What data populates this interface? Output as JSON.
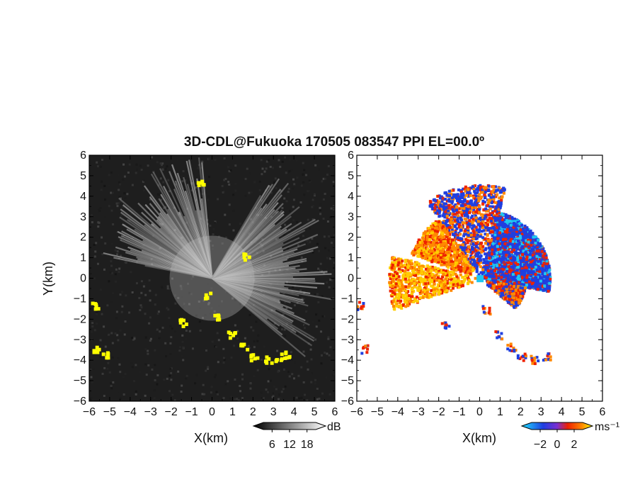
{
  "figure_title": "3D-CDL@Fukuoka 170505 083547 PPI EL=00.0º",
  "colors": {
    "yellow": "#ffff00",
    "gray_dark": "#1e1e1e",
    "blue": "#1f3fe0",
    "cyan": "#20c8f0",
    "orange": "#ff8800",
    "red": "#ee2200",
    "yellow_orange": "#ffcc00"
  },
  "chart_data": [
    {
      "type": "heatmap",
      "panel": "left",
      "quantity_unit": "dB",
      "xlabel": "X(km)",
      "ylabel": "Y(km)",
      "xlim": [
        -6,
        6
      ],
      "ylim": [
        -6,
        6
      ],
      "x_ticks": [
        "−6",
        "−5",
        "−4",
        "−3",
        "−2",
        "−1",
        "0",
        "1",
        "2",
        "3",
        "4",
        "5",
        "6"
      ],
      "y_ticks": [
        "6",
        "5",
        "4",
        "3",
        "2",
        "1",
        "0",
        "−1",
        "−2",
        "−3",
        "−4",
        "−5",
        "−6"
      ],
      "colorbar": {
        "unit": "dB",
        "tick_labels": [
          "6",
          "12",
          "18"
        ],
        "range": [
          3,
          21
        ]
      },
      "features": [
        {
          "name": "bright sector",
          "angle_from_deg": 95,
          "angle_to_deg": 170,
          "max_range_km": 6
        },
        {
          "name": "bright sector",
          "angle_from_deg": -40,
          "angle_to_deg": 60,
          "max_range_km": 6
        },
        {
          "name": "dark wedge",
          "angle_from_deg": 170,
          "angle_to_deg": 200
        },
        {
          "name": "dark wedge",
          "angle_from_deg": 205,
          "angle_to_deg": 320
        }
      ],
      "masked_points_km": [
        [
          -0.3,
          -0.8
        ],
        [
          0.2,
          -1.8
        ],
        [
          0.9,
          -2.7
        ],
        [
          1.5,
          -3.3
        ],
        [
          2.0,
          -3.8
        ],
        [
          2.7,
          -3.9
        ],
        [
          3.2,
          -3.8
        ],
        [
          3.6,
          -3.7
        ],
        [
          -5.8,
          -1.3
        ],
        [
          -5.7,
          -3.4
        ],
        [
          -5.3,
          -3.7
        ],
        [
          -1.5,
          -2.1
        ],
        [
          1.6,
          1.1
        ],
        [
          -0.6,
          4.7
        ]
      ]
    },
    {
      "type": "heatmap",
      "panel": "right",
      "quantity_unit": "ms⁻¹",
      "xlabel": "X(km)",
      "xlim": [
        -6,
        6
      ],
      "ylim": [
        -6,
        6
      ],
      "x_ticks": [
        "−6",
        "−5",
        "−4",
        "−3",
        "−2",
        "−1",
        "0",
        "1",
        "2",
        "3",
        "4",
        "5",
        "6"
      ],
      "y_ticks": [
        "6",
        "5",
        "4",
        "3",
        "2",
        "1",
        "0",
        "−1",
        "−2",
        "−3",
        "−4",
        "−5",
        "−6"
      ],
      "colorbar": {
        "unit": "ms⁻¹",
        "tick_labels": [
          "−2",
          "0",
          "2"
        ],
        "range": [
          -3,
          3
        ]
      },
      "velocity_regions": [
        {
          "region": "northeast",
          "mean_ms": -1.8
        },
        {
          "region": "northwest",
          "mean_ms": 1.6
        },
        {
          "region": "west",
          "mean_ms": 1.2
        },
        {
          "region": "southeast edge",
          "mean_ms": 1.5
        }
      ]
    }
  ]
}
